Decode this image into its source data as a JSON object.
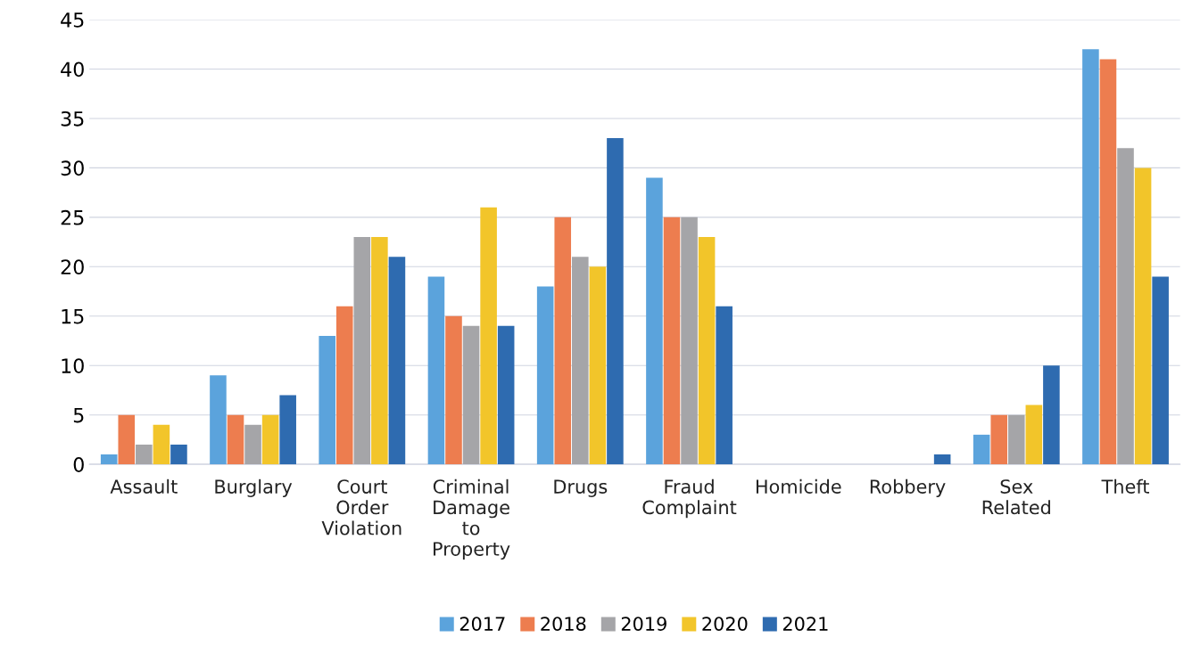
{
  "chart_data": {
    "type": "bar",
    "categories": [
      "Assault",
      "Burglary",
      "Court Order Violation",
      "Criminal Damage to Property",
      "Drugs",
      "Fraud Complaint",
      "Homicide",
      "Robbery",
      "Sex Related",
      "Theft"
    ],
    "series": [
      {
        "name": "2017",
        "color": "#5ba3dc",
        "values": [
          1,
          9,
          13,
          19,
          18,
          29,
          0,
          0,
          3,
          42
        ]
      },
      {
        "name": "2018",
        "color": "#ed7d4f",
        "values": [
          5,
          5,
          16,
          15,
          25,
          25,
          0,
          0,
          5,
          41
        ]
      },
      {
        "name": "2019",
        "color": "#a5a5a8",
        "values": [
          2,
          4,
          23,
          14,
          21,
          25,
          0,
          0,
          5,
          32
        ]
      },
      {
        "name": "2020",
        "color": "#f2c52a",
        "values": [
          4,
          5,
          23,
          26,
          20,
          23,
          0,
          0,
          6,
          30
        ]
      },
      {
        "name": "2021",
        "color": "#2e6bb0",
        "values": [
          2,
          7,
          21,
          14,
          33,
          16,
          0,
          1,
          10,
          19
        ]
      }
    ],
    "ylim": [
      0,
      45
    ],
    "yticks": [
      0,
      5,
      10,
      15,
      20,
      25,
      30,
      35,
      40,
      45
    ],
    "grid": "y",
    "legend": "bottom"
  }
}
